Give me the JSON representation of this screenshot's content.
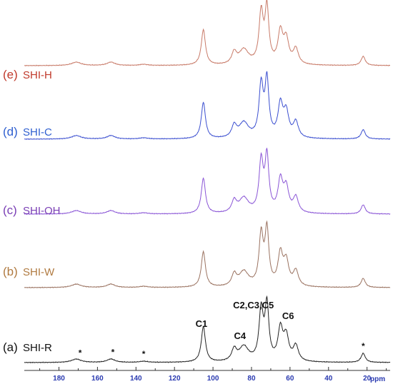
{
  "chart_data": {
    "type": "line",
    "xlabel": "ppm",
    "x_reversed": true,
    "xlim": [
      198,
      8
    ],
    "xticks": [
      180,
      160,
      140,
      120,
      100,
      80,
      60,
      40,
      20
    ],
    "series": [
      {
        "name": "SHI-H",
        "letter": "(e)",
        "color": "#c0392b",
        "line_color": "#c87a68"
      },
      {
        "name": "SHI-C",
        "letter": "(d)",
        "color": "#2f5fd0",
        "line_color": "#3b4fd0"
      },
      {
        "name": "SHI-OH",
        "letter": "(c)",
        "color": "#7a3fb5",
        "line_color": "#8a55d6"
      },
      {
        "name": "SHI-W",
        "letter": "(b)",
        "color": "#b07a40",
        "line_color": "#9a7260"
      },
      {
        "name": "SHI-R",
        "letter": "(a)",
        "color": "#111111",
        "line_color": "#222222"
      }
    ],
    "peaks": [
      {
        "ppm": 171,
        "h": 0.06,
        "w": 3.0
      },
      {
        "ppm": 153,
        "h": 0.06,
        "w": 2.5
      },
      {
        "ppm": 136,
        "h": 0.02,
        "w": 2.5
      },
      {
        "ppm": 105,
        "h": 0.62,
        "w": 1.3
      },
      {
        "ppm": 89,
        "h": 0.2,
        "w": 1.5
      },
      {
        "ppm": 84,
        "h": 0.26,
        "w": 3.0
      },
      {
        "ppm": 75,
        "h": 0.88,
        "w": 1.3
      },
      {
        "ppm": 72,
        "h": 0.96,
        "w": 1.2
      },
      {
        "ppm": 65,
        "h": 0.55,
        "w": 1.5
      },
      {
        "ppm": 62,
        "h": 0.42,
        "w": 1.6
      },
      {
        "ppm": 57,
        "h": 0.27,
        "w": 1.6
      },
      {
        "ppm": 22,
        "h": 0.16,
        "w": 1.3
      }
    ],
    "annotations": [
      {
        "text": "C1",
        "ppm": 106
      },
      {
        "text": "C4",
        "ppm": 86
      },
      {
        "text": "C2,C3,C5",
        "ppm": 79
      },
      {
        "text": "C6",
        "ppm": 61
      },
      {
        "text": "*",
        "ppm": 169
      },
      {
        "text": "*",
        "ppm": 152
      },
      {
        "text": "*",
        "ppm": 136
      },
      {
        "text": "*",
        "ppm": 22
      }
    ]
  }
}
